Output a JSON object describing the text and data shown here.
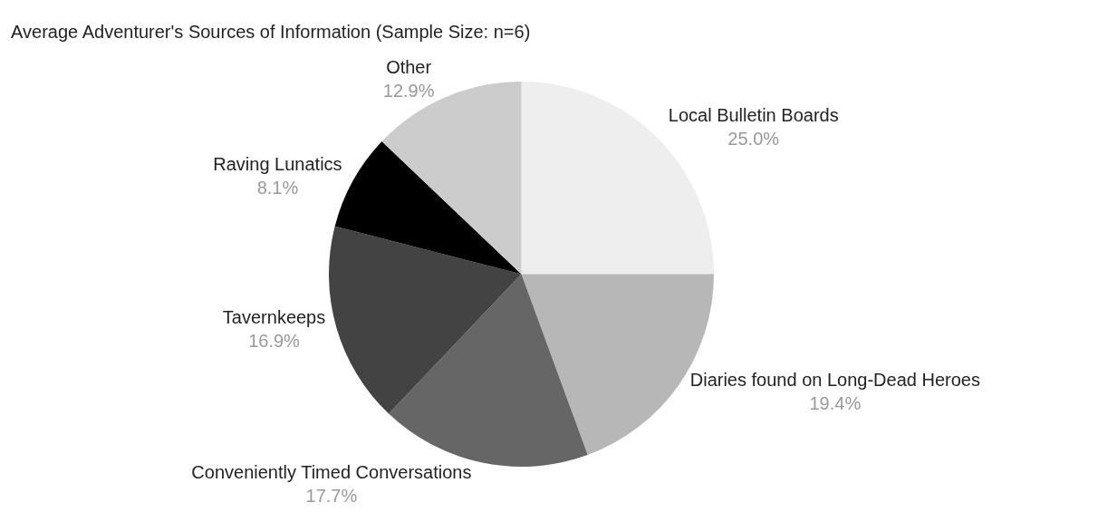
{
  "chart_data": {
    "type": "pie",
    "title": "Average Adventurer's Sources of Information (Sample Size: n=6)",
    "categories": [
      "Local Bulletin Boards",
      "Diaries found on Long-Dead Heroes",
      "Conveniently Timed Conversations",
      "Tavernkeeps",
      "Raving Lunatics",
      "Other"
    ],
    "values": [
      25.0,
      19.4,
      17.7,
      16.9,
      8.1,
      12.9
    ],
    "value_labels": [
      "25.0%",
      "19.4%",
      "17.7%",
      "16.9%",
      "8.1%",
      "12.9%"
    ],
    "colors": [
      "#eeeeee",
      "#b7b7b7",
      "#666666",
      "#434343",
      "#000000",
      "#cccccc"
    ]
  }
}
